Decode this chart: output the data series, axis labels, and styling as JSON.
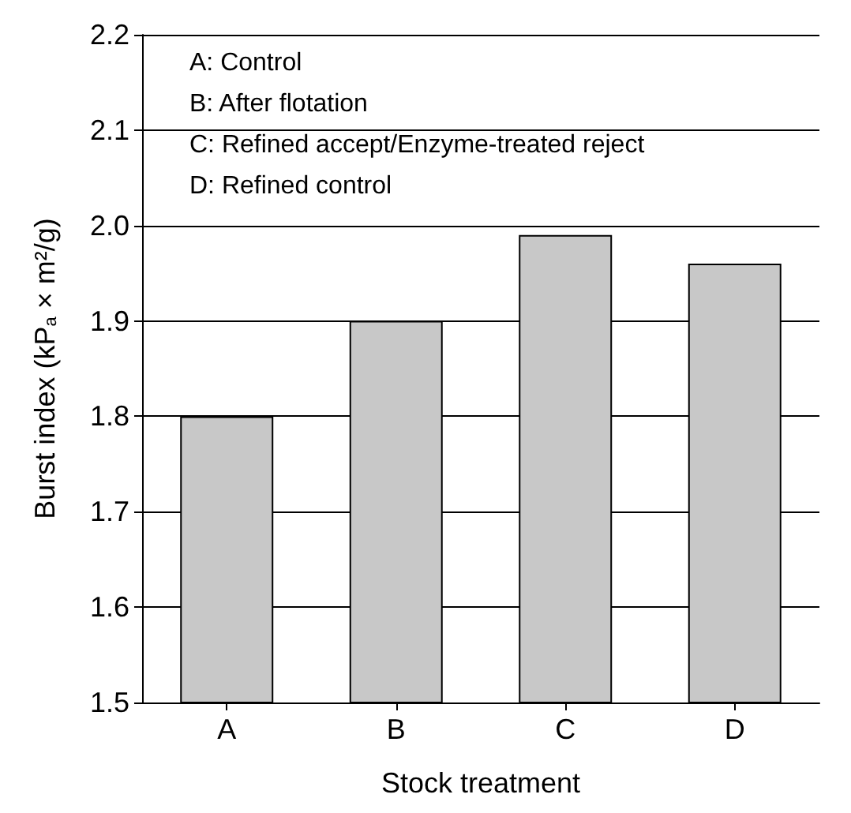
{
  "chart_data": {
    "type": "bar",
    "xlabel": "Stock treatment",
    "ylabel": "Burst index (kP$_{a}$ × m²/g)",
    "categories": [
      "A",
      "B",
      "C",
      "D"
    ],
    "values": [
      1.8,
      1.9,
      1.99,
      1.96
    ],
    "color": "#c8c8c8",
    "ylim": [
      1.5,
      2.2
    ],
    "yticks": [
      1.5,
      1.6,
      1.7,
      1.8,
      1.9,
      {
        "value": 2,
        "label": "2.0"
      },
      2.1,
      2.2
    ],
    "grid": "y",
    "annotations": [
      "A: Control",
      "B: After flotation",
      "C: Refined accept/Enzyme-treated reject",
      "D: Refined control"
    ]
  }
}
